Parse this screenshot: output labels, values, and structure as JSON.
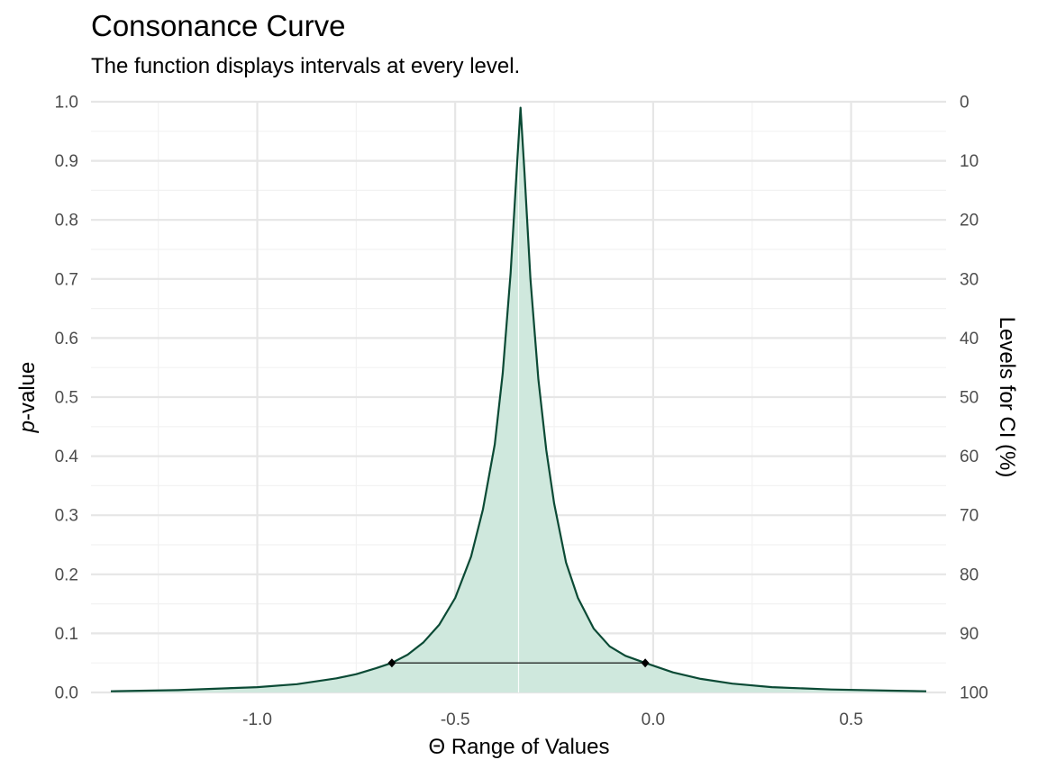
{
  "chart_data": {
    "type": "area",
    "title": "Consonance Curve",
    "subtitle": "The function displays intervals at every level.",
    "xlabel": "Θ Range of Values",
    "ylabel_italic": "p",
    "ylabel_rest": "-value",
    "y2label": "Levels for CI (%)",
    "xlim": [
      -1.42,
      0.74
    ],
    "ylim": [
      0,
      1.0
    ],
    "x_ticks": [
      -1.0,
      -0.5,
      0.0,
      0.5
    ],
    "x_tick_labels": [
      "-1.0",
      "-0.5",
      "0.0",
      "0.5"
    ],
    "y_ticks": [
      0.0,
      0.1,
      0.2,
      0.3,
      0.4,
      0.5,
      0.6,
      0.7,
      0.8,
      0.9,
      1.0
    ],
    "y_tick_labels": [
      "0.0",
      "0.1",
      "0.2",
      "0.3",
      "0.4",
      "0.5",
      "0.6",
      "0.7",
      "0.8",
      "0.9",
      "1.0"
    ],
    "y2_tick_labels": [
      "100",
      "90",
      "80",
      "70",
      "60",
      "50",
      "40",
      "30",
      "20",
      "10",
      "0"
    ],
    "grid": true,
    "legend": "none",
    "curve": {
      "x": [
        -1.37,
        -1.2,
        -1.0,
        -0.9,
        -0.8,
        -0.75,
        -0.7,
        -0.66,
        -0.62,
        -0.58,
        -0.54,
        -0.5,
        -0.46,
        -0.43,
        -0.4,
        -0.38,
        -0.36,
        -0.345,
        -0.335,
        -0.325,
        -0.31,
        -0.29,
        -0.27,
        -0.25,
        -0.22,
        -0.19,
        -0.15,
        -0.11,
        -0.07,
        -0.02,
        0.05,
        0.12,
        0.2,
        0.3,
        0.45,
        0.6,
        0.69
      ],
      "p": [
        0.002,
        0.004,
        0.009,
        0.014,
        0.024,
        0.031,
        0.041,
        0.05,
        0.064,
        0.085,
        0.115,
        0.16,
        0.23,
        0.31,
        0.42,
        0.54,
        0.71,
        0.88,
        0.99,
        0.88,
        0.7,
        0.53,
        0.41,
        0.32,
        0.22,
        0.16,
        0.108,
        0.078,
        0.062,
        0.05,
        0.034,
        0.023,
        0.015,
        0.009,
        0.005,
        0.003,
        0.002
      ]
    },
    "interval": {
      "level_p": 0.05,
      "lower": -0.66,
      "upper": -0.02
    },
    "point_estimate": -0.34,
    "colors": {
      "line": "#0b4a35",
      "fill": "#cfe8dd",
      "interval": "#000000",
      "grid_major": "#e6e6e6",
      "grid_minor": "#f2f2f2",
      "tick": "#4d4d4d",
      "center": "#ffffff"
    }
  }
}
